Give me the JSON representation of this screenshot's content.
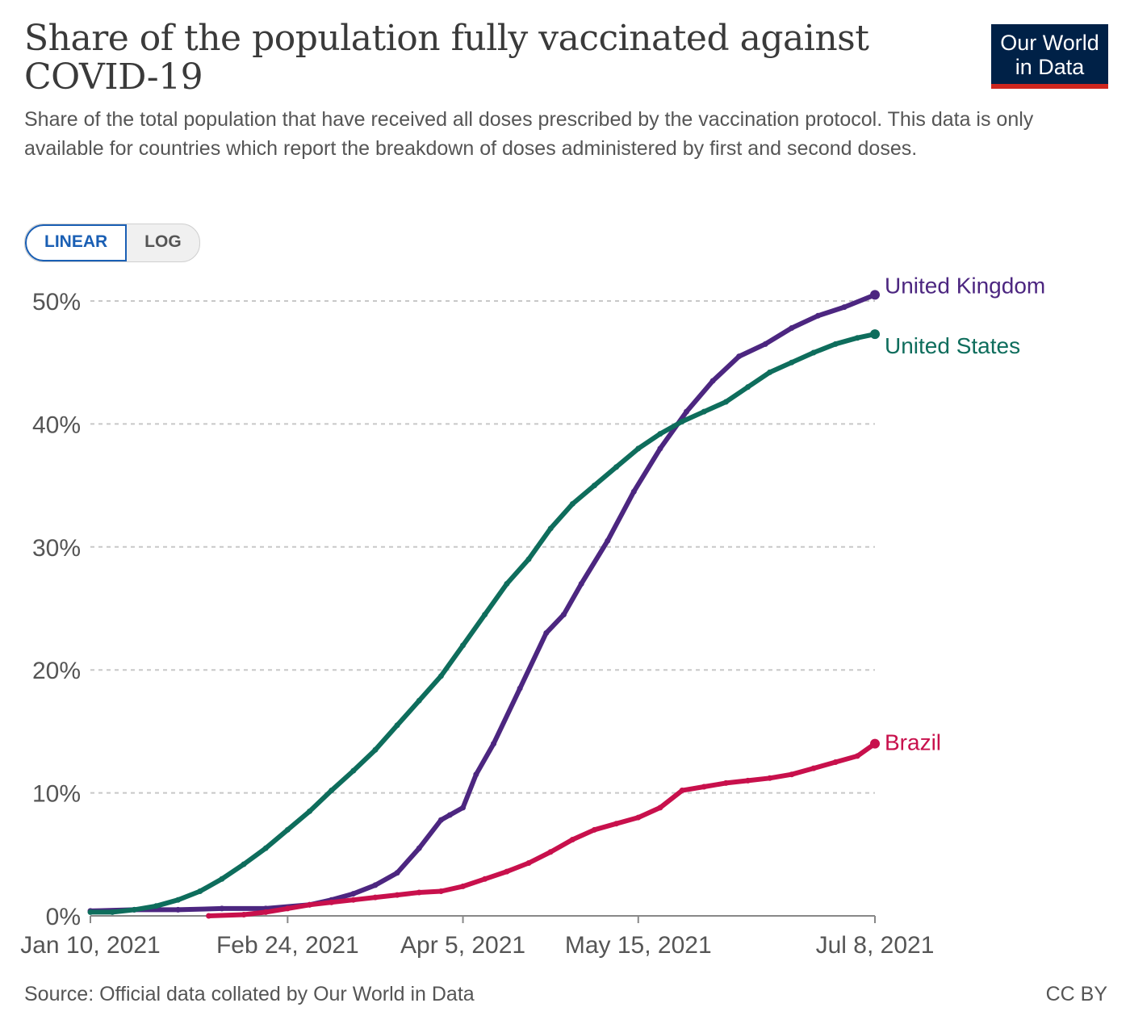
{
  "header": {
    "title": "Share of the population fully vaccinated against COVID-19",
    "subtitle": "Share of the total population that have received all doses prescribed by the vaccination protocol. This data is only available for countries which report the breakdown of doses administered by first and second doses.",
    "logo_line1": "Our World",
    "logo_line2": "in Data"
  },
  "controls": {
    "linear_label": "LINEAR",
    "log_label": "LOG"
  },
  "footer": {
    "source": "Source: Official data collated by Our World in Data",
    "license": "CC BY"
  },
  "colors": {
    "uk": "#4c2680",
    "us": "#0e6d5c",
    "brazil": "#c8104c",
    "grid": "#c8c8c8",
    "axis": "#888888",
    "text": "#555555"
  },
  "chart_data": {
    "type": "line",
    "title": "Share of the population fully vaccinated against COVID-19",
    "xlabel": "",
    "ylabel": "",
    "ylim": [
      0,
      50
    ],
    "y_ticks": [
      0,
      10,
      20,
      30,
      40,
      50
    ],
    "y_tick_labels": [
      "0%",
      "10%",
      "20%",
      "30%",
      "40%",
      "50%"
    ],
    "x_domain_days": [
      0,
      179
    ],
    "x_ticks_days": [
      0,
      45,
      85,
      125,
      179
    ],
    "x_tick_labels": [
      "Jan 10, 2021",
      "Feb 24, 2021",
      "Apr 5, 2021",
      "May 15, 2021",
      "Jul 8, 2021"
    ],
    "grid": "horizontal-dashed",
    "legend": "line-end labels",
    "series": [
      {
        "name": "United Kingdom",
        "color_key": "uk",
        "x": [
          0,
          10,
          20,
          30,
          40,
          50,
          55,
          60,
          65,
          70,
          75,
          80,
          82,
          85,
          88,
          92,
          98,
          104,
          108,
          112,
          118,
          124,
          130,
          136,
          142,
          148,
          154,
          160,
          166,
          172,
          179
        ],
        "y": [
          0.4,
          0.5,
          0.5,
          0.6,
          0.6,
          0.9,
          1.3,
          1.8,
          2.5,
          3.5,
          5.5,
          7.8,
          8.2,
          8.8,
          11.5,
          14.0,
          18.5,
          23.0,
          24.5,
          27.0,
          30.5,
          34.5,
          38.0,
          41.0,
          43.5,
          45.5,
          46.5,
          47.8,
          48.8,
          49.5,
          50.5
        ]
      },
      {
        "name": "United States",
        "color_key": "us",
        "x": [
          0,
          5,
          10,
          15,
          20,
          25,
          30,
          35,
          40,
          45,
          50,
          55,
          60,
          65,
          70,
          75,
          80,
          85,
          90,
          95,
          100,
          105,
          110,
          115,
          120,
          125,
          130,
          135,
          140,
          145,
          150,
          155,
          160,
          165,
          170,
          175,
          179
        ],
        "y": [
          0.3,
          0.3,
          0.5,
          0.8,
          1.3,
          2.0,
          3.0,
          4.2,
          5.5,
          7.0,
          8.5,
          10.2,
          11.8,
          13.5,
          15.5,
          17.5,
          19.5,
          22.0,
          24.5,
          27.0,
          29.0,
          31.5,
          33.5,
          35.0,
          36.5,
          38.0,
          39.2,
          40.2,
          41.0,
          41.8,
          43.0,
          44.2,
          45.0,
          45.8,
          46.5,
          47.0,
          47.3
        ]
      },
      {
        "name": "Brazil",
        "color_key": "brazil",
        "x": [
          27,
          35,
          40,
          45,
          50,
          55,
          60,
          65,
          70,
          75,
          80,
          85,
          90,
          95,
          100,
          105,
          110,
          115,
          120,
          125,
          130,
          135,
          140,
          145,
          150,
          155,
          160,
          165,
          170,
          175,
          179
        ],
        "y": [
          0.0,
          0.1,
          0.3,
          0.6,
          0.9,
          1.1,
          1.3,
          1.5,
          1.7,
          1.9,
          2.0,
          2.4,
          3.0,
          3.6,
          4.3,
          5.2,
          6.2,
          7.0,
          7.5,
          8.0,
          8.8,
          10.2,
          10.5,
          10.8,
          11.0,
          11.2,
          11.5,
          12.0,
          12.5,
          13.0,
          14.0
        ]
      }
    ]
  }
}
